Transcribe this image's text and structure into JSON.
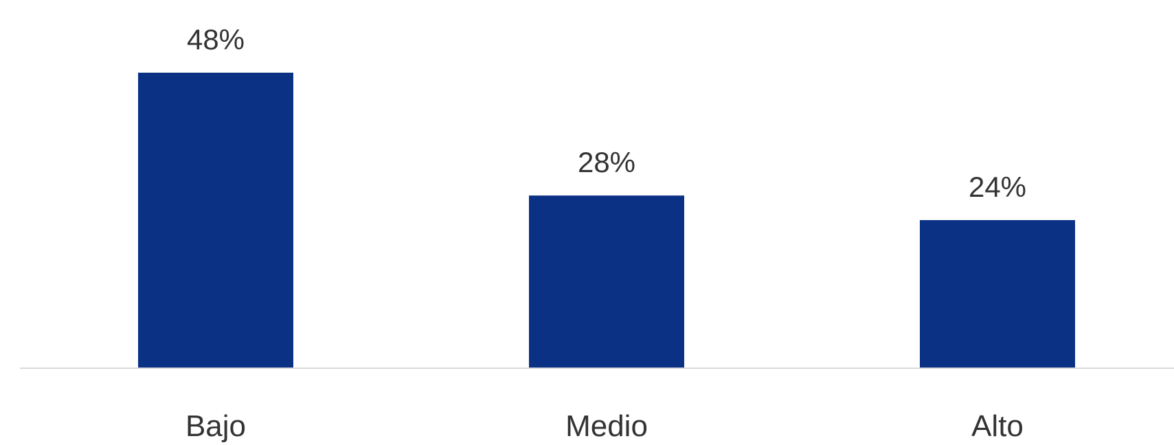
{
  "chart_data": {
    "type": "bar",
    "categories": [
      "Bajo",
      "Medio",
      "Alto"
    ],
    "values": [
      48,
      28,
      24
    ],
    "data_labels": [
      "48%",
      "28%",
      "24%"
    ],
    "unit": "%",
    "title": "",
    "xlabel": "",
    "ylabel": "",
    "ylim": [
      0,
      48
    ],
    "grid": false,
    "legend": "none",
    "colors": {
      "bar": "#0b3185",
      "baseline": "#d9d9d9",
      "text": "#333333",
      "background": "#ffffff"
    }
  }
}
